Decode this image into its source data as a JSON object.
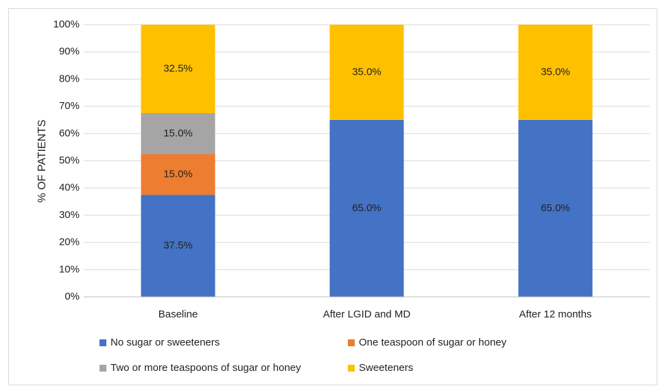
{
  "chart_data": {
    "type": "stacked_bar",
    "y_axis_label": "% OF PATIENTS",
    "categories": [
      "Baseline",
      "After LGID and MD",
      "After 12 months"
    ],
    "series": [
      {
        "name": "No sugar or sweeteners",
        "color": "#4472c4",
        "values": [
          37.5,
          65,
          65
        ],
        "value_labels": [
          "37.5%",
          "65.0%",
          "65.0%"
        ]
      },
      {
        "name": "One teaspoon of sugar or honey",
        "color": "#ed7d31",
        "values": [
          15,
          0,
          0
        ],
        "value_labels": [
          "15.0%",
          null,
          null
        ]
      },
      {
        "name": "Two or more teaspoons of sugar or honey",
        "color": "#a5a5a5",
        "values": [
          15,
          0,
          0
        ],
        "value_labels": [
          "15.0%",
          null,
          null
        ]
      },
      {
        "name": "Sweeteners",
        "color": "#ffc000",
        "values": [
          32.5,
          35,
          35
        ],
        "value_labels": [
          "32.5%",
          "35.0%",
          "35.0%"
        ]
      }
    ],
    "ylim": [
      0,
      100
    ],
    "yticks": [
      {
        "value": 0,
        "label": "0%"
      },
      {
        "value": 10,
        "label": "10%"
      },
      {
        "value": 20,
        "label": "20%"
      },
      {
        "value": 30,
        "label": "30%"
      },
      {
        "value": 40,
        "label": "40%"
      },
      {
        "value": 50,
        "label": "50%"
      },
      {
        "value": 60,
        "label": "60%"
      },
      {
        "value": 70,
        "label": "70%"
      },
      {
        "value": 80,
        "label": "80%"
      },
      {
        "value": 90,
        "label": "90%"
      },
      {
        "value": 100,
        "label": "100%"
      }
    ],
    "grid": true,
    "legend": "bottom"
  }
}
